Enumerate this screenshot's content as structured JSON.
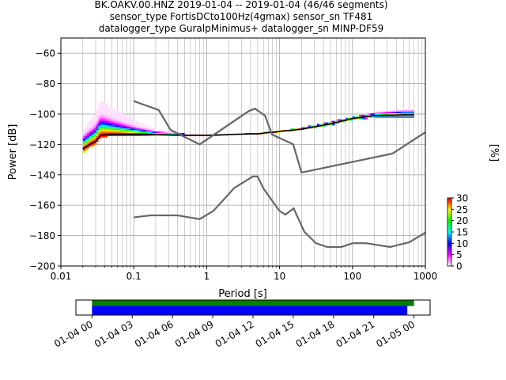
{
  "figure": {
    "title_lines": [
      "BK.OAKV.00.HNZ   2019-01-04 -- 2019-01-04  (46/46 segments)",
      "sensor_type FortisDCto100Hz(4gmax) sensor_sn TF481",
      "datalogger_type GuralpMinimus+ datalogger_sn MINP-DF59"
    ]
  },
  "chart_data": [
    {
      "type": "heatmap",
      "subtype": "probabilistic-power-spectral-density",
      "title": "BK.OAKV.00.HNZ   2019-01-04 -- 2019-01-04  (46/46 segments)",
      "xlabel": "Period [s]",
      "ylabel": "Power [dB]",
      "xscale": "log",
      "xlim": [
        0.01,
        1000
      ],
      "ylim": [
        -200,
        -50
      ],
      "x_ticks": [
        0.01,
        0.1,
        1,
        10,
        100,
        1000
      ],
      "x_tick_labels": [
        "0.01",
        "0.1",
        "1",
        "10",
        "100",
        "1000"
      ],
      "y_ticks": [
        -200,
        -180,
        -160,
        -140,
        -120,
        -100,
        -80,
        -60
      ],
      "y_tick_labels": [
        "−200",
        "−180",
        "−160",
        "−140",
        "−120",
        "−100",
        "−80",
        "−60"
      ],
      "grid": true,
      "noise_model_high": {
        "name": "NHNM",
        "x": [
          0.1,
          0.22,
          0.32,
          0.8,
          3.8,
          4.6,
          6.3,
          7.9,
          15.4,
          20,
          354.8,
          1000
        ],
        "y": [
          -91.5,
          -97.4,
          -110.5,
          -120,
          -98,
          -96.5,
          -101,
          -113.5,
          -120,
          -138.5,
          -126,
          -112
        ]
      },
      "noise_model_low": {
        "name": "NLNM",
        "x": [
          0.1,
          0.17,
          0.4,
          0.8,
          1.24,
          2.4,
          4.3,
          5,
          6,
          10,
          12,
          15.6,
          21.9,
          31.6,
          45,
          70,
          101,
          154,
          328,
          600,
          1000
        ],
        "y": [
          -168,
          -166.7,
          -166.7,
          -169.2,
          -163.7,
          -148.6,
          -141.1,
          -141.1,
          -149,
          -163.8,
          -166.2,
          -162.1,
          -177.5,
          -185,
          -187.5,
          -187.5,
          -185,
          -185,
          -187.5,
          -184.4,
          -178
        ]
      },
      "mode_line": {
        "x": [
          0.02,
          0.025,
          0.03,
          0.035,
          0.05,
          0.1,
          0.2,
          0.5,
          1,
          2,
          5,
          10,
          20,
          50,
          100,
          200,
          500,
          700
        ],
        "y": [
          -123,
          -120,
          -118,
          -114,
          -113.5,
          -113.5,
          -113.5,
          -114,
          -114,
          -113.5,
          -113,
          -111.5,
          -110,
          -106.5,
          -103,
          -101,
          -100.5,
          -100.5
        ]
      },
      "spread_curves": [
        {
          "name": "upper-spread",
          "x": [
            0.02,
            0.025,
            0.03,
            0.035,
            0.05,
            0.1,
            0.2,
            0.5,
            1,
            2,
            5,
            10,
            20,
            50,
            100,
            200,
            500,
            700
          ],
          "y": [
            -110,
            -104,
            -100,
            -91,
            -96,
            -104,
            -110,
            -113,
            -114,
            -113.5,
            -112.5,
            -111,
            -109,
            -105,
            -102,
            -99,
            -97,
            -97
          ]
        },
        {
          "name": "lower-spread",
          "x": [
            0.02,
            0.025,
            0.03,
            0.035,
            0.05,
            0.1,
            0.2,
            0.5,
            1,
            2,
            5,
            10,
            20,
            50,
            100,
            200,
            500,
            700
          ],
          "y": [
            -126,
            -122,
            -120,
            -115.5,
            -114.5,
            -114,
            -114,
            -114.5,
            -114.5,
            -114,
            -113.5,
            -112,
            -110.5,
            -107.5,
            -104,
            -102.5,
            -102,
            -102
          ]
        }
      ],
      "colorbar": {
        "label": "[%]",
        "min": 0,
        "max": 30,
        "ticks": [
          0,
          5,
          10,
          15,
          20,
          25,
          30
        ],
        "tick_labels": [
          "0",
          "5",
          "10",
          "15",
          "20",
          "25",
          "30"
        ],
        "colormap": [
          "#ffffff",
          "#ff00ff",
          "#0000ff",
          "#00ffff",
          "#00ff00",
          "#ffff00",
          "#ff0000"
        ]
      }
    },
    {
      "type": "bar",
      "subtype": "data-coverage-timeline",
      "x_tick_labels": [
        "01-04 00",
        "01-04 03",
        "01-04 06",
        "01-04 09",
        "01-04 12",
        "01-04 15",
        "01-04 18",
        "01-04 21",
        "01-05 00"
      ],
      "x_hours": [
        0,
        3,
        6,
        9,
        12,
        15,
        18,
        21,
        24
      ],
      "xlim_hours": [
        -1.2,
        25.2
      ],
      "series": [
        {
          "color": "#008000",
          "start_hour": 0,
          "end_hour": 24
        },
        {
          "color": "#0000ff",
          "start_hour": 0,
          "end_hour": 23.5
        }
      ]
    }
  ]
}
